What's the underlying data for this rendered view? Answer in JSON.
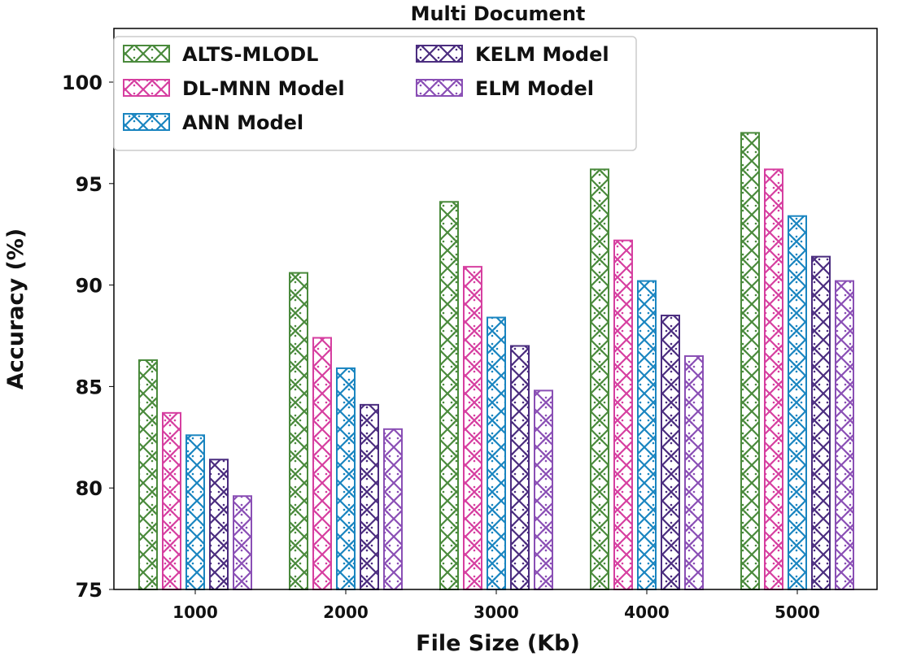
{
  "chart_data": {
    "type": "bar",
    "title": "Multi Document",
    "xlabel": "File Size (Kb)",
    "ylabel": "Accuracy (%)",
    "categories": [
      "1000",
      "2000",
      "3000",
      "4000",
      "5000"
    ],
    "ylim": [
      75,
      102.5
    ],
    "yticks": [
      75,
      80,
      85,
      90,
      95,
      100
    ],
    "grid": false,
    "legend_position": "top-left",
    "series": [
      {
        "name": "ALTS-MLODL",
        "color": "#4a8a3c",
        "values": [
          86.3,
          90.6,
          94.1,
          95.7,
          97.5
        ]
      },
      {
        "name": "DL-MNN Model",
        "color": "#d63fa0",
        "values": [
          83.7,
          87.4,
          90.9,
          92.2,
          95.7
        ]
      },
      {
        "name": "ANN Model",
        "color": "#1a85c0",
        "values": [
          82.6,
          85.9,
          88.4,
          90.2,
          93.4
        ]
      },
      {
        "name": "KELM Model",
        "color": "#4b2d7f",
        "values": [
          81.4,
          84.1,
          87.0,
          88.5,
          91.4
        ]
      },
      {
        "name": "ELM Model",
        "color": "#8a4fb5",
        "values": [
          79.6,
          82.9,
          84.8,
          86.5,
          90.2
        ]
      }
    ]
  }
}
